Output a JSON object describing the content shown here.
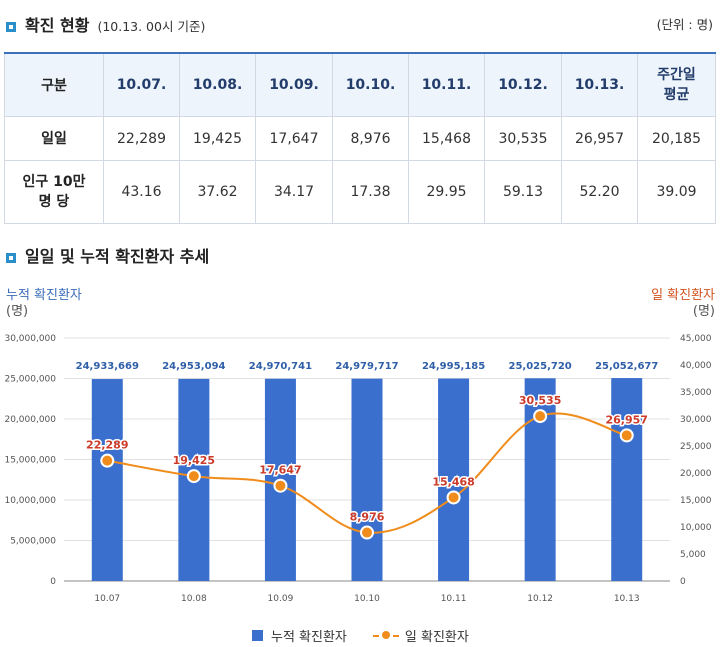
{
  "section1": {
    "title": "확진 현황",
    "subtitle": "(10.13. 00시 기준)",
    "unit": "(단위 : 명)"
  },
  "table": {
    "header": [
      "구분",
      "10.07.",
      "10.08.",
      "10.09.",
      "10.10.",
      "10.11.",
      "10.12.",
      "10.13."
    ],
    "avg_header": [
      "주간일",
      "평균"
    ],
    "rows": [
      {
        "label": [
          "일일"
        ],
        "values": [
          "22,289",
          "19,425",
          "17,647",
          "8,976",
          "15,468",
          "30,535",
          "26,957",
          "20,185"
        ]
      },
      {
        "label": [
          "인구 10만",
          "명 당"
        ],
        "values": [
          "43.16",
          "37.62",
          "34.17",
          "17.38",
          "29.95",
          "59.13",
          "52.20",
          "39.09"
        ]
      }
    ]
  },
  "section2": {
    "title": "일일 및 누적 확진환자 추세"
  },
  "axis_titles": {
    "left": "누적 확진환자",
    "left_unit": "(명)",
    "right": "일 확진환자",
    "right_unit": "(명)"
  },
  "colors": {
    "bar": "#3a6fce",
    "bar_label": "#2f5fa8",
    "line": "#f08c1b",
    "point_label": "#cc3b2a",
    "grid": "#e1e1e1"
  },
  "chart_data": {
    "type": "bar+line",
    "categories": [
      "10.07",
      "10.08",
      "10.09",
      "10.10",
      "10.11",
      "10.12",
      "10.13"
    ],
    "series": [
      {
        "name": "누적 확진환자",
        "type": "bar",
        "axis": "left",
        "values": [
          24933669,
          24953094,
          24970741,
          24979717,
          24995185,
          25025720,
          25052677
        ],
        "labels": [
          "24,933,669",
          "24,953,094",
          "24,970,741",
          "24,979,717",
          "24,995,185",
          "25,025,720",
          "25,052,677"
        ]
      },
      {
        "name": "일 확진환자",
        "type": "line",
        "axis": "right",
        "values": [
          22289,
          19425,
          17647,
          8976,
          15468,
          30535,
          26957
        ],
        "labels": [
          "22,289",
          "19,425",
          "17,647",
          "8,976",
          "15,468",
          "30,535",
          "26,957"
        ]
      }
    ],
    "left_axis": {
      "min": 0,
      "max": 30000000,
      "step": 5000000,
      "ticks": [
        "0",
        "5,000,000",
        "10,000,000",
        "15,000,000",
        "20,000,000",
        "25,000,000",
        "30,000,000"
      ]
    },
    "right_axis": {
      "min": 0,
      "max": 45000,
      "step": 5000,
      "ticks": [
        "0",
        "5,000",
        "10,000",
        "15,000",
        "20,000",
        "25,000",
        "30,000",
        "35,000",
        "40,000",
        "45,000"
      ]
    },
    "legend": [
      "누적 확진환자",
      "일 확진환자"
    ],
    "legend_position": "bottom"
  }
}
